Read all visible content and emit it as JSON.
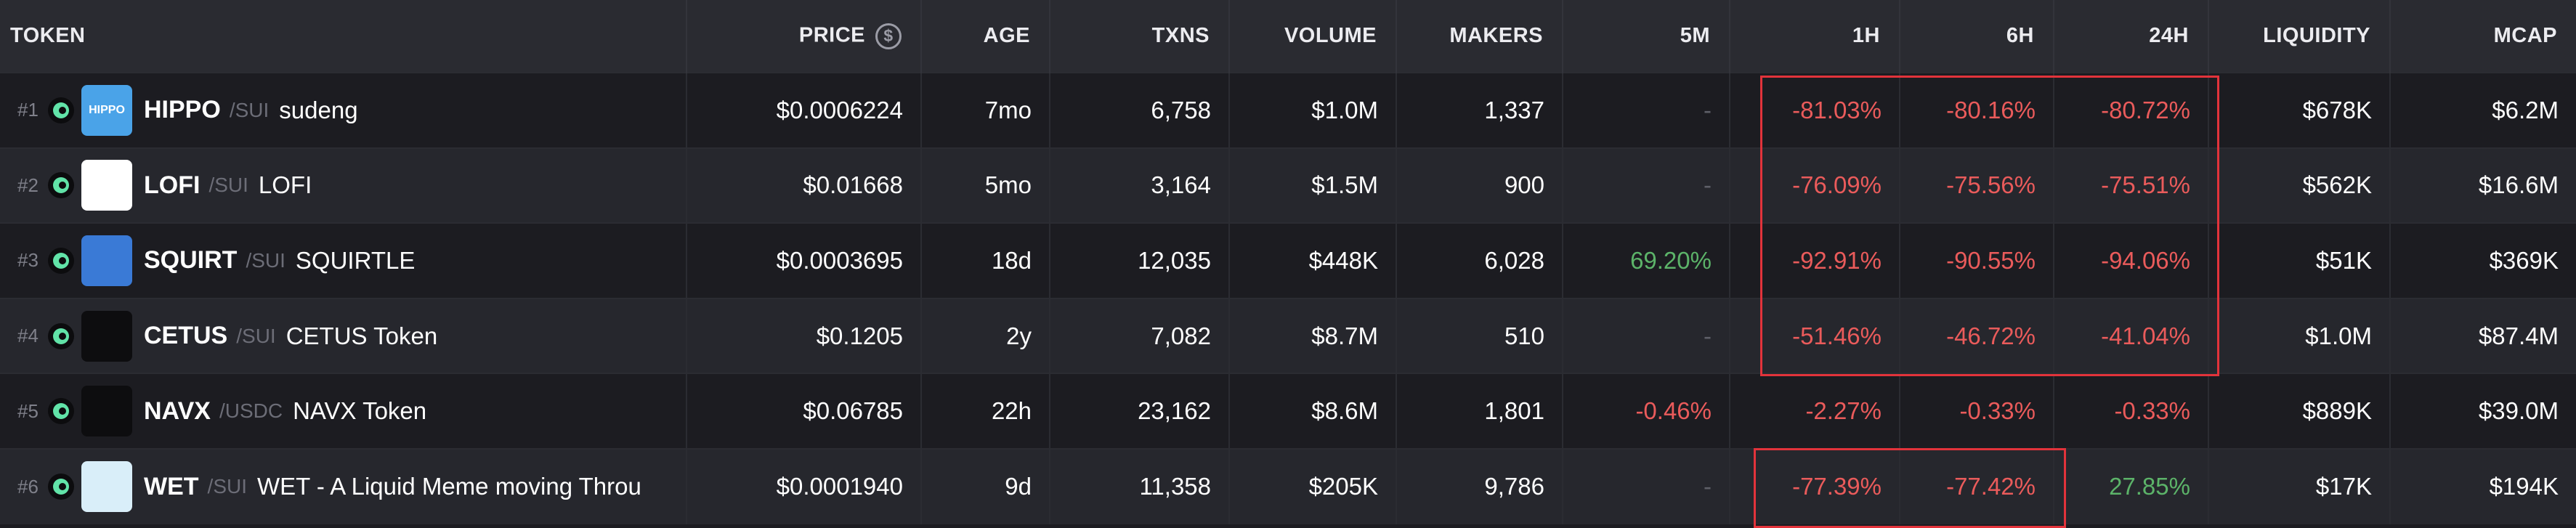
{
  "header": {
    "token": "TOKEN",
    "price": "PRICE",
    "age": "AGE",
    "txns": "TXNS",
    "volume": "VOLUME",
    "makers": "MAKERS",
    "m5": "5M",
    "h1": "1H",
    "h6": "6H",
    "h24": "24H",
    "liquidity": "LIQUIDITY",
    "mcap": "MCAP",
    "currency_icon_glyph": "$"
  },
  "rows": [
    {
      "rank": "#1",
      "symbol": "HIPPO",
      "pair": "/SUI",
      "name": "sudeng",
      "logo_text": "HIPPO",
      "price": "$0.0006224",
      "age": "7mo",
      "txns": "6,758",
      "volume": "$1.0M",
      "makers": "1,337",
      "m5": "-",
      "h1": "-81.03%",
      "h6": "-80.16%",
      "h24": "-80.72%",
      "liquidity": "$678K",
      "mcap": "$6.2M"
    },
    {
      "rank": "#2",
      "symbol": "LOFI",
      "pair": "/SUI",
      "name": "LOFI",
      "logo_text": "",
      "price": "$0.01668",
      "age": "5mo",
      "txns": "3,164",
      "volume": "$1.5M",
      "makers": "900",
      "m5": "-",
      "h1": "-76.09%",
      "h6": "-75.56%",
      "h24": "-75.51%",
      "liquidity": "$562K",
      "mcap": "$16.6M"
    },
    {
      "rank": "#3",
      "symbol": "SQUIRT",
      "pair": "/SUI",
      "name": "SQUIRTLE",
      "logo_text": "",
      "price": "$0.0003695",
      "age": "18d",
      "txns": "12,035",
      "volume": "$448K",
      "makers": "6,028",
      "m5": "69.20%",
      "h1": "-92.91%",
      "h6": "-90.55%",
      "h24": "-94.06%",
      "liquidity": "$51K",
      "mcap": "$369K"
    },
    {
      "rank": "#4",
      "symbol": "CETUS",
      "pair": "/SUI",
      "name": "CETUS Token",
      "logo_text": "",
      "price": "$0.1205",
      "age": "2y",
      "txns": "7,082",
      "volume": "$8.7M",
      "makers": "510",
      "m5": "-",
      "h1": "-51.46%",
      "h6": "-46.72%",
      "h24": "-41.04%",
      "liquidity": "$1.0M",
      "mcap": "$87.4M"
    },
    {
      "rank": "#5",
      "symbol": "NAVX",
      "pair": "/USDC",
      "name": "NAVX Token",
      "logo_text": "",
      "price": "$0.06785",
      "age": "22h",
      "txns": "23,162",
      "volume": "$8.6M",
      "makers": "1,801",
      "m5": "-0.46%",
      "h1": "-2.27%",
      "h6": "-0.33%",
      "h24": "-0.33%",
      "liquidity": "$889K",
      "mcap": "$39.0M"
    },
    {
      "rank": "#6",
      "symbol": "WET",
      "pair": "/SUI",
      "name": "WET - A Liquid Meme moving Throu",
      "logo_text": "",
      "price": "$0.0001940",
      "age": "9d",
      "txns": "11,358",
      "volume": "$205K",
      "makers": "9,786",
      "m5": "-",
      "h1": "-77.39%",
      "h6": "-77.42%",
      "h24": "27.85%",
      "liquidity": "$17K",
      "mcap": "$194K"
    }
  ],
  "logos": [
    {
      "name": "hippo-logo-icon",
      "bg": "#4aa3e8",
      "fg": "#ffffff"
    },
    {
      "name": "lofi-logo-icon",
      "bg": "#ffffff",
      "fg": "#3d6fb6"
    },
    {
      "name": "squirtle-logo-icon",
      "bg": "#3a7ad6",
      "fg": "#cfe8ff"
    },
    {
      "name": "cetus-logo-icon",
      "bg": "#0d0d0f",
      "fg": "#61e3a8"
    },
    {
      "name": "navx-logo-icon",
      "bg": "#0d0d0f",
      "fg": "#3fd08d"
    },
    {
      "name": "wet-logo-icon",
      "bg": "#d9eef9",
      "fg": "#3aa0d8"
    }
  ],
  "colors": {
    "negative": "#ea5b5b",
    "positive": "#5cb369",
    "highlight_box": "#e2333b",
    "chain_icon": "#61e3a8"
  }
}
